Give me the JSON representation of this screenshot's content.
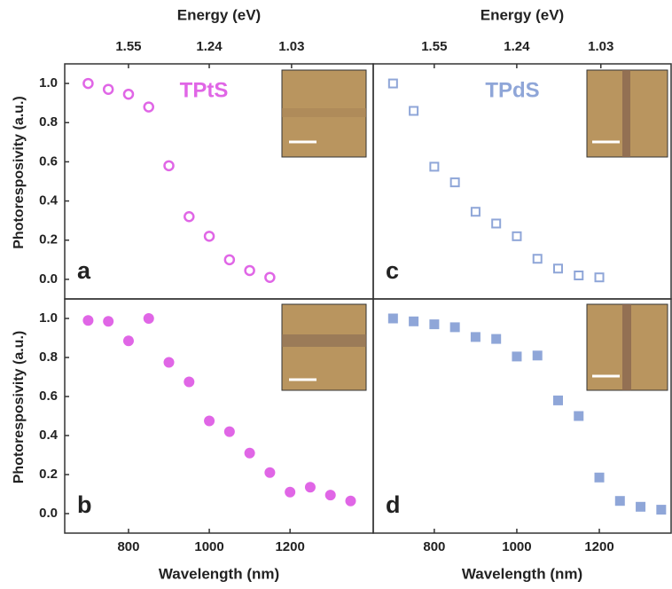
{
  "chart_data": [
    {
      "type": "scatter",
      "panel_label": "a",
      "label": "TPtS",
      "x2label": "Energy (eV)",
      "x2ticks": [
        1.55,
        1.24,
        1.03
      ],
      "ylabel": "Photoresposivity (a.u.)",
      "x": [
        700,
        750,
        800,
        850,
        900,
        950,
        1000,
        1050,
        1100,
        1150
      ],
      "values": [
        1.0,
        0.97,
        0.945,
        0.88,
        0.58,
        0.32,
        0.22,
        0.1,
        0.045,
        0.01
      ],
      "color": "#e066e6",
      "marker": "open-circle",
      "xlim": [
        642,
        1406
      ],
      "ylim": [
        -0.1,
        1.1
      ],
      "yticks": [
        {
          "value": 0,
          "label": "0.0"
        },
        0.2,
        0.4,
        0.6,
        0.8,
        {
          "value": 1,
          "label": "1.0"
        }
      ]
    },
    {
      "type": "scatter",
      "panel_label": "c",
      "label": "TPdS",
      "x2label": "Energy (eV)",
      "x2ticks": [
        1.55,
        1.24,
        1.03
      ],
      "x": [
        700,
        750,
        800,
        850,
        900,
        950,
        1000,
        1050,
        1100,
        1150,
        1200
      ],
      "values": [
        1.0,
        0.86,
        0.575,
        0.495,
        0.345,
        0.285,
        0.22,
        0.105,
        0.055,
        0.02,
        0.01
      ],
      "color": "#8fa6d8",
      "marker": "open-square",
      "xlim": [
        652,
        1374
      ],
      "ylim": [
        -0.1,
        1.1
      ]
    },
    {
      "type": "scatter",
      "panel_label": "b",
      "xlabel": "Wavelength (nm)",
      "ylabel": "Photoresposivity (a.u.)",
      "x": [
        700,
        750,
        800,
        850,
        900,
        950,
        1000,
        1050,
        1100,
        1150,
        1200,
        1250,
        1300,
        1350
      ],
      "values": [
        0.99,
        0.985,
        0.885,
        1.0,
        0.775,
        0.675,
        0.475,
        0.42,
        0.31,
        0.21,
        0.11,
        0.135,
        0.095,
        0.065
      ],
      "color": "#e066e6",
      "marker": "circle",
      "xlim": [
        642,
        1406
      ],
      "ylim": [
        -0.1,
        1.1
      ],
      "xticks": [
        800,
        1000,
        1200
      ],
      "yticks": [
        {
          "value": 0,
          "label": "0.0"
        },
        0.2,
        0.4,
        0.6,
        0.8,
        {
          "value": 1,
          "label": "1.0"
        }
      ]
    },
    {
      "type": "scatter",
      "panel_label": "d",
      "xlabel": "Wavelength (nm)",
      "x": [
        700,
        750,
        800,
        850,
        900,
        950,
        1000,
        1050,
        1100,
        1150,
        1200,
        1250,
        1300,
        1350
      ],
      "values": [
        1.0,
        0.985,
        0.97,
        0.955,
        0.905,
        0.895,
        0.805,
        0.81,
        0.58,
        0.5,
        0.185,
        0.065,
        0.035,
        0.02
      ],
      "color": "#8fa6d8",
      "marker": "square",
      "xlim": [
        652,
        1374
      ],
      "ylim": [
        -0.1,
        1.1
      ],
      "xticks": [
        800,
        1000,
        1200
      ]
    }
  ]
}
